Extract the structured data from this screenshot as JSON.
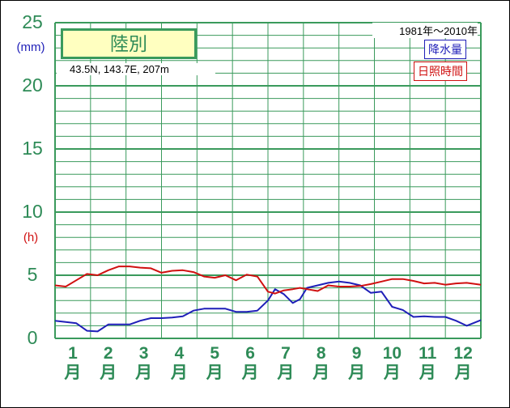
{
  "station": {
    "name": "陸別",
    "coords": "43.5N,  143.7E,  207m"
  },
  "period": "1981年～2010年",
  "legend": {
    "precip": "降水量",
    "sun": "日照時間"
  },
  "colors": {
    "grid": "#3a9a5c",
    "axis_text": "#2e8b57",
    "precip": "#1f1fb8",
    "sun": "#d01010"
  },
  "units": {
    "precip": "(mm)",
    "sun": "(h)"
  },
  "chart_data": {
    "type": "line",
    "ylim": [
      0,
      25
    ],
    "y_ticks": [
      "0",
      "5",
      "10",
      "15",
      "20",
      "25"
    ],
    "month_labels": [
      [
        "1",
        "月"
      ],
      [
        "2",
        "月"
      ],
      [
        "3",
        "月"
      ],
      [
        "4",
        "月"
      ],
      [
        "5",
        "月"
      ],
      [
        "6",
        "月"
      ],
      [
        "7",
        "月"
      ],
      [
        "8",
        "月"
      ],
      [
        "9",
        "月"
      ],
      [
        "10",
        "月"
      ],
      [
        "11",
        "月"
      ],
      [
        "12",
        "月"
      ]
    ],
    "x_range": [
      0,
      12
    ],
    "series": [
      {
        "name": "降水量",
        "color": "#1f1fb8",
        "x": [
          0,
          0.3,
          0.6,
          0.9,
          1.2,
          1.5,
          1.8,
          2.1,
          2.4,
          2.7,
          3.0,
          3.3,
          3.6,
          3.9,
          4.2,
          4.5,
          4.8,
          5.1,
          5.4,
          5.7,
          6.0,
          6.2,
          6.45,
          6.7,
          6.9,
          7.1,
          7.4,
          7.7,
          8.0,
          8.3,
          8.6,
          8.9,
          9.2,
          9.5,
          9.8,
          10.1,
          10.4,
          10.7,
          11.0,
          11.3,
          11.6,
          12.0
        ],
        "values": [
          1.4,
          1.3,
          1.2,
          0.6,
          0.55,
          1.1,
          1.1,
          1.1,
          1.4,
          1.6,
          1.6,
          1.65,
          1.75,
          2.2,
          2.35,
          2.35,
          2.35,
          2.1,
          2.1,
          2.2,
          3.0,
          3.9,
          3.5,
          2.8,
          3.1,
          4.0,
          4.2,
          4.4,
          4.5,
          4.4,
          4.2,
          3.6,
          3.7,
          2.5,
          2.25,
          1.7,
          1.75,
          1.7,
          1.7,
          1.4,
          1.0,
          1.45
        ]
      },
      {
        "name": "日照時間",
        "color": "#d01010",
        "x": [
          0,
          0.3,
          0.6,
          0.9,
          1.2,
          1.5,
          1.8,
          2.1,
          2.4,
          2.7,
          3.0,
          3.3,
          3.6,
          3.9,
          4.2,
          4.5,
          4.8,
          5.1,
          5.4,
          5.7,
          6.0,
          6.2,
          6.45,
          6.7,
          6.9,
          7.1,
          7.4,
          7.7,
          8.0,
          8.3,
          8.6,
          8.9,
          9.2,
          9.5,
          9.8,
          10.1,
          10.4,
          10.7,
          11.0,
          11.3,
          11.6,
          12.0
        ],
        "values": [
          4.2,
          4.1,
          4.6,
          5.1,
          5.0,
          5.4,
          5.7,
          5.7,
          5.6,
          5.55,
          5.2,
          5.35,
          5.4,
          5.25,
          4.9,
          4.8,
          5.0,
          4.6,
          5.05,
          4.9,
          3.7,
          3.55,
          3.8,
          3.9,
          4.0,
          3.9,
          3.75,
          4.2,
          4.1,
          4.1,
          4.15,
          4.3,
          4.5,
          4.7,
          4.7,
          4.55,
          4.35,
          4.4,
          4.25,
          4.35,
          4.4,
          4.25
        ]
      }
    ]
  }
}
